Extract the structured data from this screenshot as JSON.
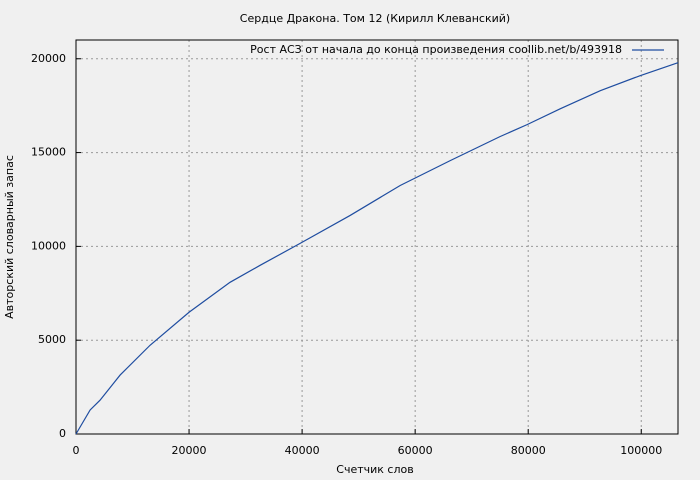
{
  "chart_data": {
    "type": "line",
    "title": "Сердце Дракона. Том 12 (Кирилл Клеванский)",
    "xlabel": "Счетчик слов",
    "ylabel": "Авторский словарный запас",
    "x": [
      0,
      2500,
      4250,
      7800,
      13100,
      20000,
      27250,
      32570,
      39650,
      48500,
      57350,
      66200,
      75000,
      79800,
      85700,
      92750,
      99800,
      106500
    ],
    "series": [
      {
        "name": "Рост АСЗ от начала до конца произведения  coollib.net/b/493918",
        "color": "#1f4da0",
        "values": [
          0,
          1280,
          1800,
          3140,
          4730,
          6490,
          8085,
          8990,
          10160,
          11650,
          13245,
          14570,
          15850,
          16490,
          17340,
          18300,
          19100,
          19790
        ]
      }
    ],
    "xlim": [
      0,
      106500
    ],
    "ylim": [
      0,
      21000
    ],
    "xticks": [
      0,
      20000,
      40000,
      60000,
      80000,
      100000
    ],
    "yticks": [
      0,
      5000,
      10000,
      15000,
      20000
    ],
    "grid": true,
    "legend": "top-right"
  }
}
